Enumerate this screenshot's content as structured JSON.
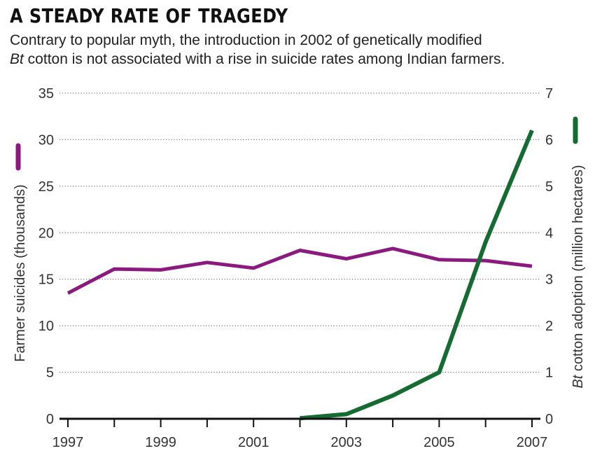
{
  "chart_data": {
    "type": "line",
    "title": "A STEADY RATE OF TRAGEDY",
    "subtitle": {
      "line1": "Contrary to popular myth, the introduction in 2002 of genetically modified",
      "line2_italic": "Bt",
      "line2_rest": " cotton is not associated with a rise in suicide rates among Indian farmers."
    },
    "x": [
      1997,
      1998,
      1999,
      2000,
      2001,
      2002,
      2003,
      2004,
      2005,
      2006,
      2007
    ],
    "x_tick_labels": [
      "1997",
      "1999",
      "2001",
      "2003",
      "2005",
      "2007"
    ],
    "xlim": [
      1997,
      2007
    ],
    "ylabel_left": "Farmer suicides (thousands)",
    "ylabel_right_italic": "Bt",
    "ylabel_right_rest": " cotton adoption (million hectares)",
    "ylim_left": [
      0,
      35
    ],
    "yticks_left": [
      "0",
      "5",
      "10",
      "15",
      "20",
      "25",
      "30",
      "35"
    ],
    "ylim_right": [
      0,
      7
    ],
    "yticks_right": [
      "0",
      "1",
      "2",
      "3",
      "4",
      "5",
      "6",
      "7"
    ],
    "grid": true,
    "series": [
      {
        "axis": "left",
        "color": "#8b1a7e",
        "points": [
          [
            1997,
            13.5
          ],
          [
            1998,
            16.1
          ],
          [
            1999,
            16.0
          ],
          [
            2000,
            16.8
          ],
          [
            2001,
            16.2
          ],
          [
            2002,
            18.1
          ],
          [
            2003,
            17.2
          ],
          [
            2004,
            18.3
          ],
          [
            2005,
            17.1
          ],
          [
            2006,
            17.0
          ],
          [
            2007,
            16.4
          ]
        ]
      },
      {
        "axis": "right",
        "color": "#156b32",
        "points": [
          [
            2002,
            0.01
          ],
          [
            2003,
            0.1
          ],
          [
            2004,
            0.5
          ],
          [
            2005,
            1.0
          ],
          [
            2006,
            3.8
          ],
          [
            2007,
            6.2
          ]
        ]
      }
    ]
  }
}
